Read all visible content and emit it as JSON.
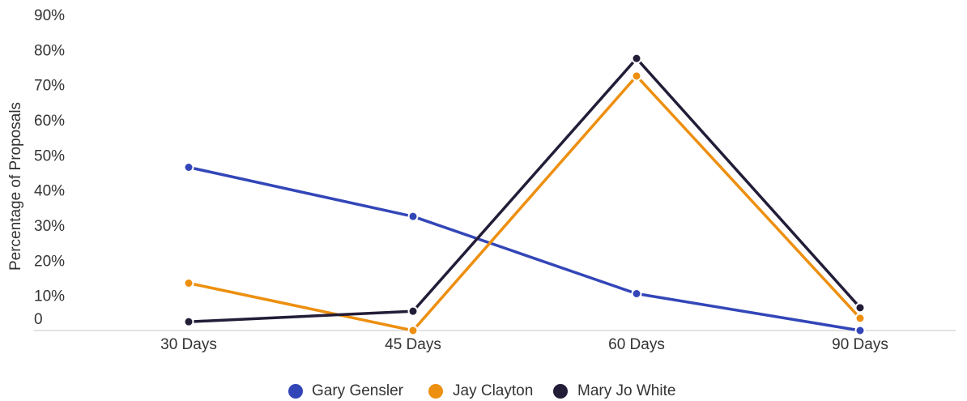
{
  "chart_data": {
    "type": "line",
    "title": "",
    "xlabel": "",
    "ylabel": "Percentage of Proposals",
    "categories": [
      "30 Days",
      "45 Days",
      "60 Days",
      "90 Days"
    ],
    "y_ticks": [
      "0",
      "10%",
      "20%",
      "30%",
      "40%",
      "50%",
      "60%",
      "70%",
      "80%",
      "90%"
    ],
    "ylim": [
      0,
      90
    ],
    "grid": false,
    "legend_position": "bottom",
    "series": [
      {
        "name": "Gary Gensler",
        "color": "#3346b8",
        "values": [
          46.5,
          32.5,
          10.5,
          0
        ]
      },
      {
        "name": "Jay Clayton",
        "color": "#ed8f0f",
        "values": [
          13.5,
          0,
          72.5,
          3.5
        ]
      },
      {
        "name": "Mary Jo White",
        "color": "#231d38",
        "values": [
          2.5,
          5.5,
          77.5,
          6.5
        ]
      }
    ]
  }
}
